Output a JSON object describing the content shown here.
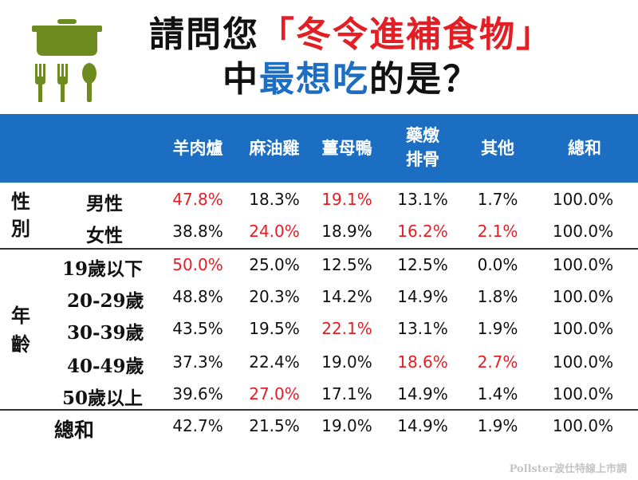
{
  "title_line1_prefix": "請問您",
  "title_line1_highlight": "「冬令進補食物」",
  "title_line2_prefix": "中",
  "title_line2_highlight": "最想吃",
  "title_line2_suffix": "的是？",
  "columns": [
    "羊肉爐",
    "麻油雞",
    "薑母鴨",
    "藥燉\n排骨",
    "其他",
    "總和"
  ],
  "groups": {
    "gender": "性\n別",
    "age": "年\n齡"
  },
  "rows": [
    {
      "label": "男性",
      "values": [
        "47.8%",
        "18.3%",
        "19.1%",
        "13.1%",
        "1.7%",
        "100.0%"
      ],
      "highlight": [
        0,
        2
      ]
    },
    {
      "label": "女性",
      "values": [
        "38.8%",
        "24.0%",
        "18.9%",
        "16.2%",
        "2.1%",
        "100.0%"
      ],
      "highlight": [
        1,
        3,
        4
      ]
    },
    {
      "label": "19歲以下",
      "values": [
        "50.0%",
        "25.0%",
        "12.5%",
        "12.5%",
        "0.0%",
        "100.0%"
      ],
      "highlight": [
        0
      ]
    },
    {
      "label": "20-29歲",
      "values": [
        "48.8%",
        "20.3%",
        "14.2%",
        "14.9%",
        "1.8%",
        "100.0%"
      ],
      "highlight": []
    },
    {
      "label": "30-39歲",
      "values": [
        "43.5%",
        "19.5%",
        "22.1%",
        "13.1%",
        "1.9%",
        "100.0%"
      ],
      "highlight": [
        2
      ]
    },
    {
      "label": "40-49歲",
      "values": [
        "37.3%",
        "22.4%",
        "19.0%",
        "18.6%",
        "2.7%",
        "100.0%"
      ],
      "highlight": [
        3,
        4
      ]
    },
    {
      "label": "50歲以上",
      "values": [
        "39.6%",
        "27.0%",
        "17.1%",
        "14.9%",
        "1.4%",
        "100.0%"
      ],
      "highlight": [
        1
      ]
    },
    {
      "label": "總和",
      "values": [
        "42.7%",
        "21.5%",
        "19.0%",
        "14.9%",
        "1.9%",
        "100.0%"
      ],
      "highlight": []
    }
  ],
  "footer": "Pollster波仕特線上市調",
  "colors": {
    "header_bg": "#1b6ec2",
    "highlight": "#e31e24",
    "logo": "#6e8b1f"
  },
  "icons": [
    "pot-icon",
    "fork-icon",
    "spoon-icon"
  ]
}
